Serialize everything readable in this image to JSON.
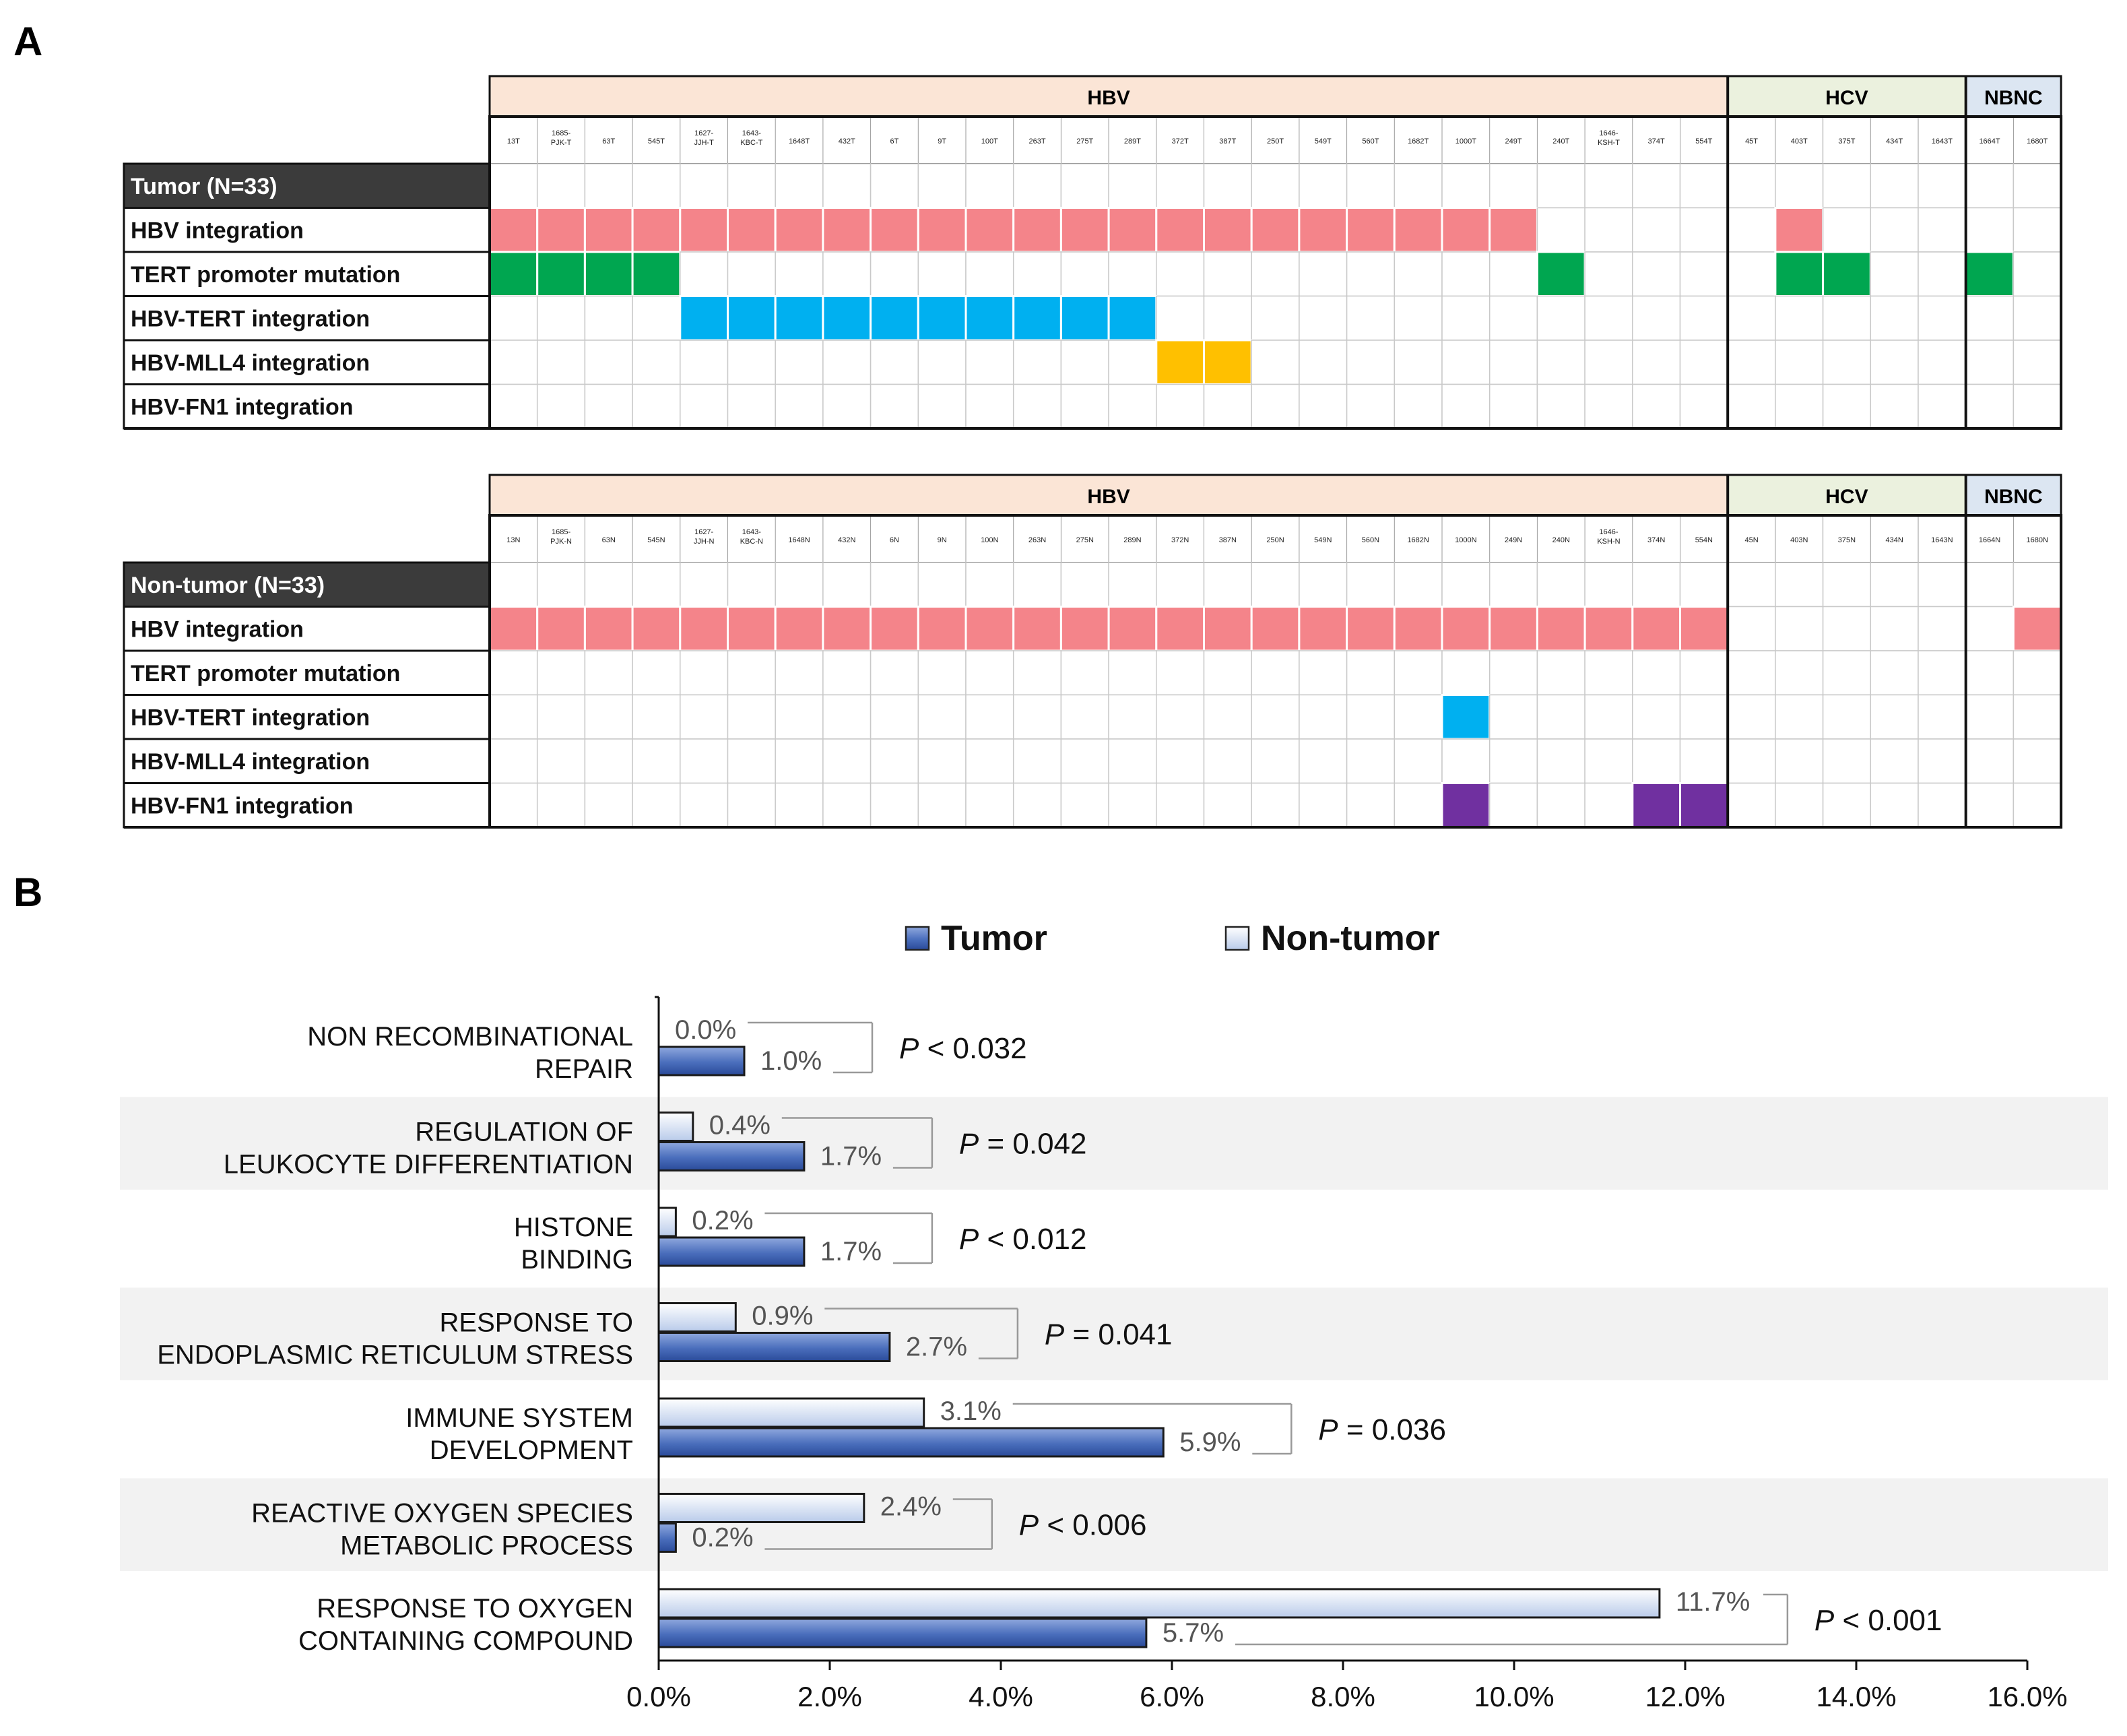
{
  "panel_a": {
    "letter": "A",
    "groups": [
      {
        "name": "HBV",
        "count": 26,
        "color": "#fbe5d6"
      },
      {
        "name": "HCV",
        "count": 5,
        "color": "#ebf1de"
      },
      {
        "name": "NBNC",
        "count": 2,
        "color": "#dce6f2"
      }
    ],
    "tables": [
      {
        "header": "Tumor (N=33)",
        "samples": [
          "13T",
          "1685-\nPJK-T",
          "63T",
          "545T",
          "1627-\nJJH-T",
          "1643-\nKBC-T",
          "1648T",
          "432T",
          "6T",
          "9T",
          "100T",
          "263T",
          "275T",
          "289T",
          "372T",
          "387T",
          "250T",
          "549T",
          "560T",
          "1682T",
          "1000T",
          "249T",
          "240T",
          "1646-\nKSH-T",
          "374T",
          "554T",
          "45T",
          "403T",
          "375T",
          "434T",
          "1643T",
          "1664T",
          "1680T"
        ],
        "rows": [
          {
            "label": "HBV integration",
            "color": "#f4848a",
            "cells": [
              0,
              1,
              2,
              3,
              4,
              5,
              6,
              7,
              8,
              9,
              10,
              11,
              12,
              13,
              14,
              15,
              16,
              17,
              18,
              19,
              20,
              21,
              27
            ]
          },
          {
            "label": "TERT promoter mutation",
            "color": "#00a650",
            "cells": [
              0,
              1,
              2,
              3,
              22,
              27,
              28,
              31
            ]
          },
          {
            "label": "HBV-TERT integration",
            "color": "#00b0f0",
            "cells": [
              4,
              5,
              6,
              7,
              8,
              9,
              10,
              11,
              12,
              13
            ]
          },
          {
            "label": "HBV-MLL4 integration",
            "color": "#ffc000",
            "cells": [
              14,
              15
            ]
          },
          {
            "label": "HBV-FN1 integration",
            "color": "#7030a0",
            "cells": []
          }
        ]
      },
      {
        "header": "Non-tumor (N=33)",
        "samples": [
          "13N",
          "1685-\nPJK-N",
          "63N",
          "545N",
          "1627-\nJJH-N",
          "1643-\nKBC-N",
          "1648N",
          "432N",
          "6N",
          "9N",
          "100N",
          "263N",
          "275N",
          "289N",
          "372N",
          "387N",
          "250N",
          "549N",
          "560N",
          "1682N",
          "1000N",
          "249N",
          "240N",
          "1646-\nKSH-N",
          "374N",
          "554N",
          "45N",
          "403N",
          "375N",
          "434N",
          "1643N",
          "1664N",
          "1680N"
        ],
        "rows": [
          {
            "label": "HBV integration",
            "color": "#f4848a",
            "cells": [
              0,
              1,
              2,
              3,
              4,
              5,
              6,
              7,
              8,
              9,
              10,
              11,
              12,
              13,
              14,
              15,
              16,
              17,
              18,
              19,
              20,
              21,
              22,
              23,
              24,
              25,
              32
            ]
          },
          {
            "label": "TERT promoter mutation",
            "color": "#00a650",
            "cells": []
          },
          {
            "label": "HBV-TERT integration",
            "color": "#00b0f0",
            "cells": [
              20
            ]
          },
          {
            "label": "HBV-MLL4 integration",
            "color": "#ffc000",
            "cells": []
          },
          {
            "label": "HBV-FN1 integration",
            "color": "#7030a0",
            "cells": [
              20,
              24,
              25
            ]
          }
        ]
      }
    ]
  },
  "panel_b": {
    "letter": "B",
    "legend": [
      {
        "label": "Tumor",
        "color": "#4a6ebc"
      },
      {
        "label": "Non-tumor",
        "color": "#dfe8f7"
      }
    ]
  },
  "chart_data": {
    "type": "bar",
    "orientation": "horizontal",
    "title": "",
    "xlabel": "",
    "ylabel": "",
    "xlim": [
      0,
      16
    ],
    "ticks": [
      "0.0%",
      "2.0%",
      "4.0%",
      "6.0%",
      "8.0%",
      "10.0%",
      "12.0%",
      "14.0%",
      "16.0%"
    ],
    "grid": false,
    "legend_position": "top-center",
    "categories": [
      [
        "NON RECOMBINATIONAL",
        "REPAIR"
      ],
      [
        "REGULATION OF",
        "LEUKOCYTE DIFFERENTIATION"
      ],
      [
        "HISTONE",
        "BINDING"
      ],
      [
        "RESPONSE TO",
        "ENDOPLASMIC RETICULUM STRESS"
      ],
      [
        "IMMUNE SYSTEM",
        "DEVELOPMENT"
      ],
      [
        "REACTIVE OXYGEN SPECIES",
        "METABOLIC PROCESS"
      ],
      [
        "RESPONSE TO OXYGEN",
        "CONTAINING COMPOUND"
      ]
    ],
    "series": [
      {
        "name": "Non-tumor",
        "values": [
          0.0,
          0.4,
          0.2,
          0.9,
          3.1,
          2.4,
          11.7
        ],
        "labels": [
          "0.0%",
          "0.4%",
          "0.2%",
          "0.9%",
          "3.1%",
          "2.4%",
          "11.7%"
        ]
      },
      {
        "name": "Tumor",
        "values": [
          1.0,
          1.7,
          1.7,
          2.7,
          5.9,
          0.2,
          5.7
        ],
        "labels": [
          "1.0%",
          "1.7%",
          "1.7%",
          "2.7%",
          "5.9%",
          "0.2%",
          "5.7%"
        ]
      }
    ],
    "p_values": [
      {
        "op": "<",
        "value": "0.032"
      },
      {
        "op": "=",
        "value": "0.042"
      },
      {
        "op": "<",
        "value": "0.012"
      },
      {
        "op": "=",
        "value": "0.041"
      },
      {
        "op": "=",
        "value": "0.036"
      },
      {
        "op": "<",
        "value": "0.006"
      },
      {
        "op": "<",
        "value": "0.001"
      }
    ],
    "p_symbol": "P"
  }
}
